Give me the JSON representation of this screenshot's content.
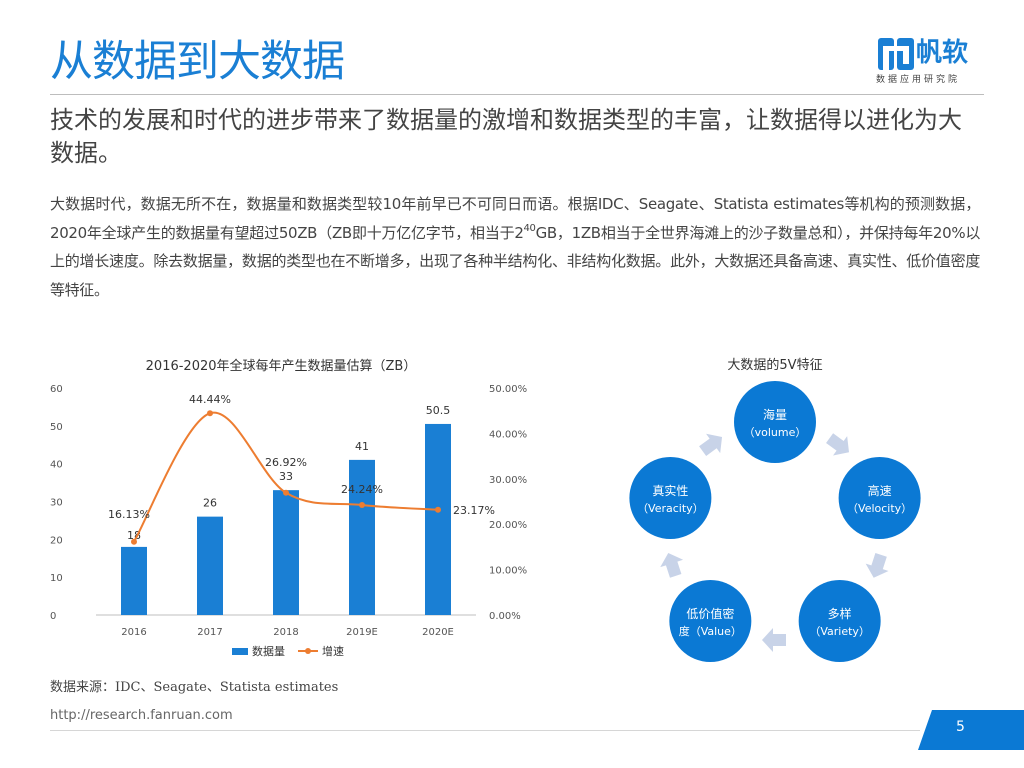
{
  "header": {
    "title": "从数据到大数据",
    "logo_name": "帆软",
    "logo_sub": "数据应用研究院"
  },
  "subtitle": "技术的发展和时代的进步带来了数据量的激增和数据类型的丰富，让数据得以进化为大数据。",
  "body": {
    "part1": "大数据时代，数据无所不在，数据量和数据类型较10年前早已不可同日而语。根据IDC、Seagate、Statista estimates等机构的预测数据，2020年全球产生的数据量有望超过50ZB（ZB即十万亿亿字节，相当于2",
    "sup": "40",
    "part2": "GB，1ZB相当于全世界海滩上的沙子数量总和），并保持每年20%以上的增长速度。除去数据量，数据的类型也在不断增多，出现了各种半结构化、非结构化数据。此外，大数据还具备高速、真实性、低价值密度等特征。"
  },
  "chart_data": [
    {
      "type": "bar",
      "title": "2016-2020年全球每年产生数据量估算（ZB）",
      "categories": [
        "2016",
        "2017",
        "2018",
        "2019E",
        "2020E"
      ],
      "series": [
        {
          "name": "数据量",
          "type": "bar",
          "axis": "left",
          "values": [
            18,
            26,
            33,
            41,
            50.5
          ],
          "labels": [
            "18",
            "26",
            "33",
            "41",
            "50.5"
          ],
          "color": "#1a7fd4"
        },
        {
          "name": "增速",
          "type": "line",
          "axis": "right",
          "values": [
            16.13,
            44.44,
            26.92,
            24.24,
            23.17
          ],
          "labels": [
            "16.13%",
            "44.44%",
            "26.92%",
            "24.24%",
            "23.17%"
          ],
          "color": "#ed7d31"
        }
      ],
      "ylim": [
        0,
        60
      ],
      "yticks": [
        "0",
        "10",
        "20",
        "30",
        "40",
        "50",
        "60"
      ],
      "y2lim": [
        0,
        50
      ],
      "y2ticks": [
        "0.00%",
        "10.00%",
        "20.00%",
        "30.00%",
        "40.00%",
        "50.00%"
      ],
      "legend": "bottom",
      "grid": false
    }
  ],
  "diagram": {
    "title": "大数据的5V特征",
    "nodes": [
      {
        "line1": "海量",
        "line2": "（volume）"
      },
      {
        "line1": "高速",
        "line2": "（Velocity）"
      },
      {
        "line1": "多样",
        "line2": "（Variety）"
      },
      {
        "line1": "低价值密",
        "line2": "度（Value）"
      },
      {
        "line1": "真实性",
        "line2": "（Veracity）"
      }
    ],
    "node_color": "#0b79d4",
    "arrow_color": "#c8d3e8"
  },
  "footer": {
    "source": "数据来源：IDC、Seagate、Statista estimates",
    "url": "http://research.fanruan.com",
    "page": "5"
  }
}
